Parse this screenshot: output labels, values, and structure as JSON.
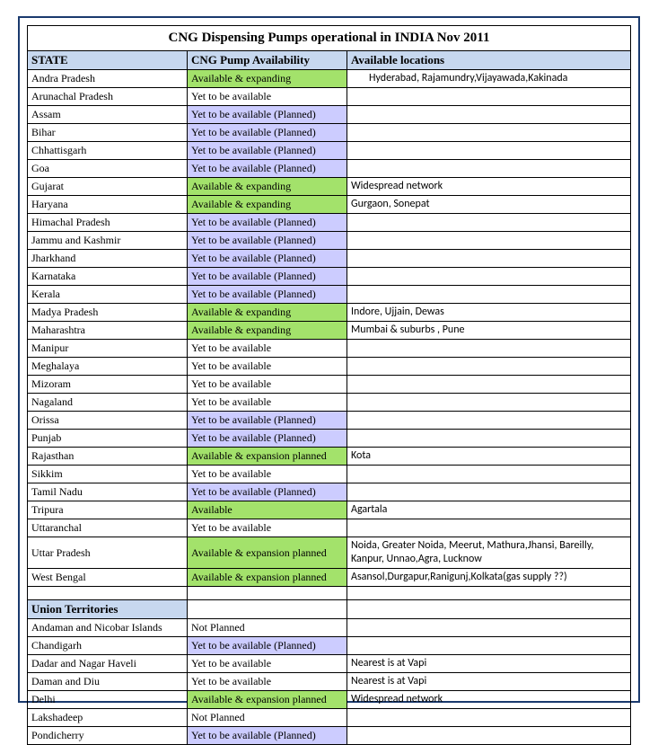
{
  "title": "CNG Dispensing Pumps operational in INDIA Nov 2011",
  "headers": {
    "state": "STATE",
    "avail": "CNG Pump Availability",
    "loc": "Available locations",
    "ut": "Union Territories"
  },
  "colors": {
    "header_bg": "#c7d8ef",
    "green_bg": "#a3e26b",
    "purple_bg": "#ccccff",
    "border_outer": "#1a3a6e"
  },
  "states": [
    {
      "name": "Andra Pradesh",
      "avail": "Available & expanding",
      "avail_class": "green",
      "loc": "Hyderabad, Rajamundry,Vijayawada,Kakinada",
      "loc_indent": true
    },
    {
      "name": "Arunachal Pradesh",
      "avail": "Yet to be available",
      "avail_class": "",
      "loc": ""
    },
    {
      "name": "Assam",
      "avail": "Yet to be available (Planned)",
      "avail_class": "purple",
      "loc": ""
    },
    {
      "name": "Bihar",
      "avail": "Yet to be available (Planned)",
      "avail_class": "purple",
      "loc": ""
    },
    {
      "name": "Chhattisgarh",
      "avail": "Yet to be available (Planned)",
      "avail_class": "purple",
      "loc": ""
    },
    {
      "name": "Goa",
      "avail": "Yet to be available (Planned)",
      "avail_class": "purple",
      "loc": ""
    },
    {
      "name": "Gujarat",
      "avail": "Available & expanding",
      "avail_class": "green",
      "loc": "Widespread network"
    },
    {
      "name": "Haryana",
      "avail": "Available & expanding",
      "avail_class": "green",
      "loc": "Gurgaon, Sonepat"
    },
    {
      "name": "Himachal Pradesh",
      "avail": "Yet to be available (Planned)",
      "avail_class": "purple",
      "loc": ""
    },
    {
      "name": "Jammu and Kashmir",
      "avail": "Yet to be available (Planned)",
      "avail_class": "purple",
      "loc": ""
    },
    {
      "name": "Jharkhand",
      "avail": "Yet to be available (Planned)",
      "avail_class": "purple",
      "loc": ""
    },
    {
      "name": "Karnataka",
      "avail": "Yet to be available (Planned)",
      "avail_class": "purple",
      "loc": ""
    },
    {
      "name": "Kerala",
      "avail": "Yet to be available (Planned)",
      "avail_class": "purple",
      "loc": ""
    },
    {
      "name": "Madya Pradesh",
      "avail": "Available & expanding",
      "avail_class": "green",
      "loc": "Indore, Ujjain, Dewas"
    },
    {
      "name": "Maharashtra",
      "avail": "Available & expanding",
      "avail_class": "green",
      "loc": "Mumbai & suburbs , Pune"
    },
    {
      "name": "Manipur",
      "avail": "Yet to be available",
      "avail_class": "",
      "loc": ""
    },
    {
      "name": "Meghalaya",
      "avail": "Yet to be available",
      "avail_class": "",
      "loc": ""
    },
    {
      "name": "Mizoram",
      "avail": "Yet to be available",
      "avail_class": "",
      "loc": ""
    },
    {
      "name": "Nagaland",
      "avail": "Yet to be available",
      "avail_class": "",
      "loc": ""
    },
    {
      "name": "Orissa",
      "avail": "Yet to be available (Planned)",
      "avail_class": "purple",
      "loc": ""
    },
    {
      "name": "Punjab",
      "avail": "Yet to be available (Planned)",
      "avail_class": "purple",
      "loc": ""
    },
    {
      "name": "Rajasthan",
      "avail": "Available & expansion planned",
      "avail_class": "green",
      "loc": "Kota"
    },
    {
      "name": "Sikkim",
      "avail": "Yet to be available",
      "avail_class": "",
      "loc": ""
    },
    {
      "name": "Tamil Nadu",
      "avail": "Yet to be available (Planned)",
      "avail_class": "purple",
      "loc": ""
    },
    {
      "name": "Tripura",
      "avail": "Available",
      "avail_class": "green",
      "loc": "Agartala"
    },
    {
      "name": "Uttaranchal",
      "avail": "Yet to be available",
      "avail_class": "",
      "loc": ""
    },
    {
      "name": "Uttar Pradesh",
      "avail": "Available & expansion planned",
      "avail_class": "green",
      "loc": "Noida, Greater Noida,  Meerut, Mathura,Jhansi, Bareilly, Kanpur, Unnao,Agra, Lucknow",
      "tall": true
    },
    {
      "name": "West Bengal",
      "avail": "Available & expansion planned",
      "avail_class": "green",
      "loc": "Asansol,Durgapur,Ranigunj,Kolkata(gas supply ??)"
    }
  ],
  "uts": [
    {
      "name": "Andaman and Nicobar Islands",
      "avail": "Not Planned",
      "avail_class": "",
      "loc": ""
    },
    {
      "name": "Chandigarh",
      "avail": "Yet to be available (Planned)",
      "avail_class": "purple",
      "loc": ""
    },
    {
      "name": "Dadar and Nagar Haveli",
      "avail": "Yet to be available",
      "avail_class": "",
      "loc": "Nearest is at Vapi"
    },
    {
      "name": "Daman and Diu",
      "avail": "Yet to be available",
      "avail_class": "",
      "loc": "Nearest is at Vapi"
    },
    {
      "name": "Delhi",
      "avail": "Available & expansion planned",
      "avail_class": "green",
      "loc": "Widespread network"
    },
    {
      "name": "Lakshadeep",
      "avail": "Not Planned",
      "avail_class": "",
      "loc": ""
    },
    {
      "name": "Pondicherry",
      "avail": "Yet to be available (Planned)",
      "avail_class": "purple",
      "loc": ""
    }
  ]
}
